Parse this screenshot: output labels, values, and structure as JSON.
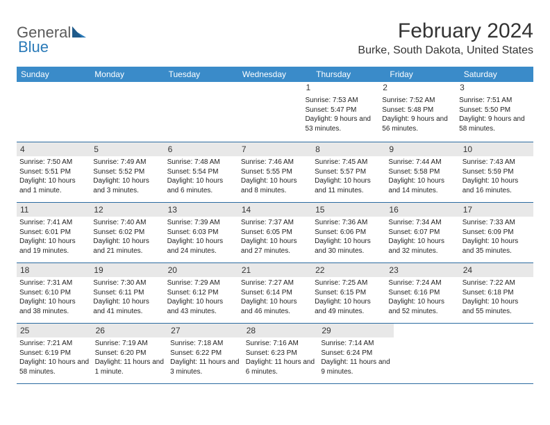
{
  "logo": {
    "text1": "General",
    "text2": "Blue"
  },
  "title": "February 2024",
  "location": "Burke, South Dakota, United States",
  "colors": {
    "header_bg": "#3a8bc9",
    "header_text": "#ffffff",
    "daybar_bg": "#e8e8e8",
    "rule": "#2a6aa0",
    "text": "#222222",
    "logo_gray": "#5a5a5a",
    "logo_blue": "#2a7ab8"
  },
  "weekdays": [
    "Sunday",
    "Monday",
    "Tuesday",
    "Wednesday",
    "Thursday",
    "Friday",
    "Saturday"
  ],
  "weeks": [
    [
      null,
      null,
      null,
      null,
      {
        "n": "1",
        "sunrise": "Sunrise: 7:53 AM",
        "sunset": "Sunset: 5:47 PM",
        "daylight": "Daylight: 9 hours and 53 minutes."
      },
      {
        "n": "2",
        "sunrise": "Sunrise: 7:52 AM",
        "sunset": "Sunset: 5:48 PM",
        "daylight": "Daylight: 9 hours and 56 minutes."
      },
      {
        "n": "3",
        "sunrise": "Sunrise: 7:51 AM",
        "sunset": "Sunset: 5:50 PM",
        "daylight": "Daylight: 9 hours and 58 minutes."
      }
    ],
    [
      {
        "n": "4",
        "sunrise": "Sunrise: 7:50 AM",
        "sunset": "Sunset: 5:51 PM",
        "daylight": "Daylight: 10 hours and 1 minute."
      },
      {
        "n": "5",
        "sunrise": "Sunrise: 7:49 AM",
        "sunset": "Sunset: 5:52 PM",
        "daylight": "Daylight: 10 hours and 3 minutes."
      },
      {
        "n": "6",
        "sunrise": "Sunrise: 7:48 AM",
        "sunset": "Sunset: 5:54 PM",
        "daylight": "Daylight: 10 hours and 6 minutes."
      },
      {
        "n": "7",
        "sunrise": "Sunrise: 7:46 AM",
        "sunset": "Sunset: 5:55 PM",
        "daylight": "Daylight: 10 hours and 8 minutes."
      },
      {
        "n": "8",
        "sunrise": "Sunrise: 7:45 AM",
        "sunset": "Sunset: 5:57 PM",
        "daylight": "Daylight: 10 hours and 11 minutes."
      },
      {
        "n": "9",
        "sunrise": "Sunrise: 7:44 AM",
        "sunset": "Sunset: 5:58 PM",
        "daylight": "Daylight: 10 hours and 14 minutes."
      },
      {
        "n": "10",
        "sunrise": "Sunrise: 7:43 AM",
        "sunset": "Sunset: 5:59 PM",
        "daylight": "Daylight: 10 hours and 16 minutes."
      }
    ],
    [
      {
        "n": "11",
        "sunrise": "Sunrise: 7:41 AM",
        "sunset": "Sunset: 6:01 PM",
        "daylight": "Daylight: 10 hours and 19 minutes."
      },
      {
        "n": "12",
        "sunrise": "Sunrise: 7:40 AM",
        "sunset": "Sunset: 6:02 PM",
        "daylight": "Daylight: 10 hours and 21 minutes."
      },
      {
        "n": "13",
        "sunrise": "Sunrise: 7:39 AM",
        "sunset": "Sunset: 6:03 PM",
        "daylight": "Daylight: 10 hours and 24 minutes."
      },
      {
        "n": "14",
        "sunrise": "Sunrise: 7:37 AM",
        "sunset": "Sunset: 6:05 PM",
        "daylight": "Daylight: 10 hours and 27 minutes."
      },
      {
        "n": "15",
        "sunrise": "Sunrise: 7:36 AM",
        "sunset": "Sunset: 6:06 PM",
        "daylight": "Daylight: 10 hours and 30 minutes."
      },
      {
        "n": "16",
        "sunrise": "Sunrise: 7:34 AM",
        "sunset": "Sunset: 6:07 PM",
        "daylight": "Daylight: 10 hours and 32 minutes."
      },
      {
        "n": "17",
        "sunrise": "Sunrise: 7:33 AM",
        "sunset": "Sunset: 6:09 PM",
        "daylight": "Daylight: 10 hours and 35 minutes."
      }
    ],
    [
      {
        "n": "18",
        "sunrise": "Sunrise: 7:31 AM",
        "sunset": "Sunset: 6:10 PM",
        "daylight": "Daylight: 10 hours and 38 minutes."
      },
      {
        "n": "19",
        "sunrise": "Sunrise: 7:30 AM",
        "sunset": "Sunset: 6:11 PM",
        "daylight": "Daylight: 10 hours and 41 minutes."
      },
      {
        "n": "20",
        "sunrise": "Sunrise: 7:29 AM",
        "sunset": "Sunset: 6:12 PM",
        "daylight": "Daylight: 10 hours and 43 minutes."
      },
      {
        "n": "21",
        "sunrise": "Sunrise: 7:27 AM",
        "sunset": "Sunset: 6:14 PM",
        "daylight": "Daylight: 10 hours and 46 minutes."
      },
      {
        "n": "22",
        "sunrise": "Sunrise: 7:25 AM",
        "sunset": "Sunset: 6:15 PM",
        "daylight": "Daylight: 10 hours and 49 minutes."
      },
      {
        "n": "23",
        "sunrise": "Sunrise: 7:24 AM",
        "sunset": "Sunset: 6:16 PM",
        "daylight": "Daylight: 10 hours and 52 minutes."
      },
      {
        "n": "24",
        "sunrise": "Sunrise: 7:22 AM",
        "sunset": "Sunset: 6:18 PM",
        "daylight": "Daylight: 10 hours and 55 minutes."
      }
    ],
    [
      {
        "n": "25",
        "sunrise": "Sunrise: 7:21 AM",
        "sunset": "Sunset: 6:19 PM",
        "daylight": "Daylight: 10 hours and 58 minutes."
      },
      {
        "n": "26",
        "sunrise": "Sunrise: 7:19 AM",
        "sunset": "Sunset: 6:20 PM",
        "daylight": "Daylight: 11 hours and 1 minute."
      },
      {
        "n": "27",
        "sunrise": "Sunrise: 7:18 AM",
        "sunset": "Sunset: 6:22 PM",
        "daylight": "Daylight: 11 hours and 3 minutes."
      },
      {
        "n": "28",
        "sunrise": "Sunrise: 7:16 AM",
        "sunset": "Sunset: 6:23 PM",
        "daylight": "Daylight: 11 hours and 6 minutes."
      },
      {
        "n": "29",
        "sunrise": "Sunrise: 7:14 AM",
        "sunset": "Sunset: 6:24 PM",
        "daylight": "Daylight: 11 hours and 9 minutes."
      },
      null,
      null
    ]
  ]
}
